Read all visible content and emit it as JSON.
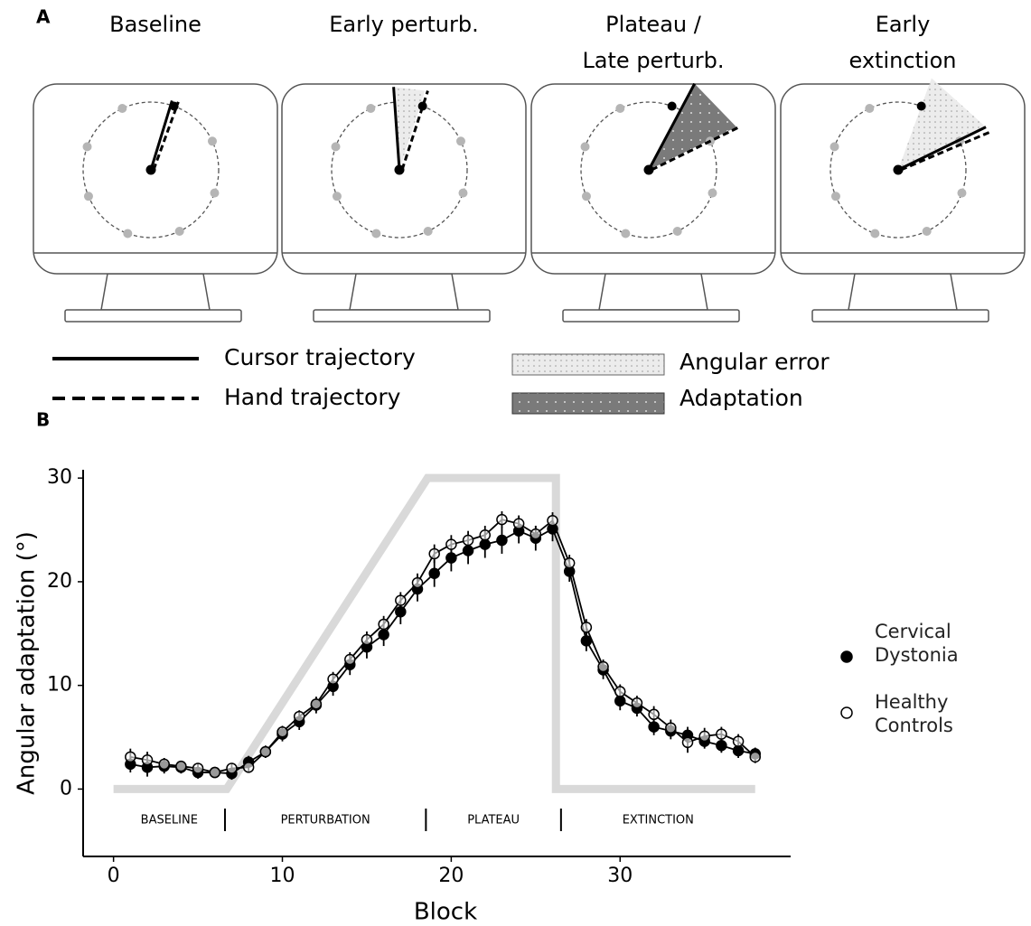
{
  "panel_a": {
    "label": "A",
    "monitors": [
      {
        "title_lines": [
          "Baseline"
        ]
      },
      {
        "title_lines": [
          "Early perturb."
        ]
      },
      {
        "title_lines": [
          "Plateau /",
          "Late perturb."
        ]
      },
      {
        "title_lines": [
          "Early",
          "extinction"
        ]
      }
    ],
    "legend": {
      "cursor": "Cursor trajectory",
      "hand": "Hand trajectory",
      "angular_error": "Angular error",
      "adaptation": "Adaptation"
    }
  },
  "chart_data": {
    "type": "line",
    "label": "B",
    "xlabel": "Block",
    "ylabel": "Angular adaptation (°)",
    "xlim": [
      -1.8,
      40.1
    ],
    "ylim": [
      -6.5,
      30.8
    ],
    "xticks": [
      0,
      10,
      20,
      30
    ],
    "yticks": [
      0,
      10,
      20,
      30
    ],
    "x": [
      1,
      2,
      3,
      4,
      5,
      6,
      7,
      8,
      9,
      10,
      11,
      12,
      13,
      14,
      15,
      16,
      17,
      18,
      19,
      20,
      21,
      22,
      23,
      24,
      25,
      26,
      27,
      28,
      29,
      30,
      31,
      32,
      33,
      34,
      35,
      36,
      37,
      38
    ],
    "series": [
      {
        "name": "Cervical Dystonia",
        "color": "#000000",
        "marker": "filled",
        "values": [
          2.4,
          2.1,
          2.2,
          2.1,
          1.6,
          1.6,
          1.5,
          2.6,
          3.6,
          5.3,
          6.5,
          8.1,
          9.9,
          12.0,
          13.7,
          14.9,
          17.1,
          19.3,
          20.8,
          22.3,
          23.0,
          23.6,
          24.0,
          24.9,
          24.2,
          25.1,
          21.0,
          14.3,
          11.5,
          8.5,
          7.8,
          6.0,
          5.6,
          5.2,
          4.6,
          4.2,
          3.7,
          3.4
        ],
        "errors": [
          0.8,
          0.9,
          0.7,
          0.6,
          0.6,
          0.5,
          0.6,
          0.6,
          0.6,
          0.7,
          0.8,
          0.8,
          0.9,
          1.0,
          1.1,
          1.1,
          1.2,
          1.2,
          1.3,
          1.3,
          1.3,
          1.3,
          1.3,
          1.2,
          1.2,
          1.2,
          1.0,
          1.0,
          0.9,
          0.9,
          0.8,
          0.8,
          0.8,
          0.8,
          0.7,
          0.7,
          0.7,
          0.6
        ]
      },
      {
        "name": "Healthy Controls",
        "color": "#000000",
        "marker": "open",
        "values": [
          3.1,
          2.8,
          2.4,
          2.2,
          2.0,
          1.6,
          2.0,
          2.1,
          3.6,
          5.5,
          7.0,
          8.2,
          10.6,
          12.5,
          14.4,
          15.9,
          18.2,
          19.9,
          22.7,
          23.6,
          24.0,
          24.5,
          26.0,
          25.6,
          24.6,
          25.9,
          21.8,
          15.6,
          11.8,
          9.4,
          8.3,
          7.2,
          5.9,
          4.5,
          5.1,
          5.3,
          4.6,
          3.1
        ],
        "errors": [
          0.8,
          0.8,
          0.6,
          0.5,
          0.5,
          0.5,
          0.5,
          0.5,
          0.5,
          0.6,
          0.6,
          0.7,
          0.7,
          0.7,
          0.8,
          0.8,
          0.8,
          0.9,
          0.9,
          0.9,
          0.9,
          0.9,
          0.8,
          0.8,
          0.8,
          0.8,
          0.8,
          0.8,
          0.7,
          0.7,
          0.7,
          0.8,
          0.8,
          1.0,
          0.8,
          0.7,
          0.7,
          0.6
        ]
      }
    ],
    "schedule": {
      "color": "#d9d9d9",
      "x": [
        0,
        6.7,
        18.6,
        26.2,
        26.2,
        38
      ],
      "values": [
        0,
        0,
        30,
        30,
        0,
        0
      ]
    },
    "phases": [
      "BASELINE",
      "PERTURBATION",
      "PLATEAU",
      "EXTINCTION"
    ],
    "phase_boundaries": [
      6.6,
      18.5,
      26.5
    ]
  }
}
